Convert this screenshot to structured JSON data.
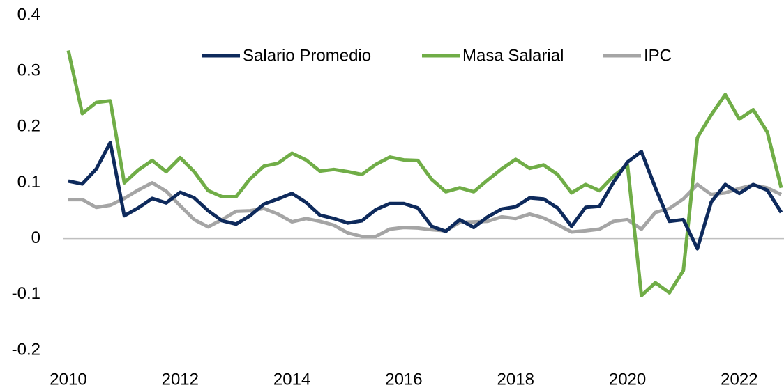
{
  "chart_data": {
    "type": "line",
    "x": [
      2010,
      2010.25,
      2010.5,
      2010.75,
      2011,
      2011.25,
      2011.5,
      2011.75,
      2012,
      2012.25,
      2012.5,
      2012.75,
      2013,
      2013.25,
      2013.5,
      2013.75,
      2014,
      2014.25,
      2014.5,
      2014.75,
      2015,
      2015.25,
      2015.5,
      2015.75,
      2016,
      2016.25,
      2016.5,
      2016.75,
      2017,
      2017.25,
      2017.5,
      2017.75,
      2018,
      2018.25,
      2018.5,
      2018.75,
      2019,
      2019.25,
      2019.5,
      2019.75,
      2020,
      2020.25,
      2020.5,
      2020.75,
      2021,
      2021.25,
      2021.5,
      2021.75,
      2022,
      2022.25,
      2022.5,
      2022.75
    ],
    "series": [
      {
        "name": "Salario Promedio",
        "color": "#0e2a5c",
        "values": [
          0.103,
          0.098,
          0.125,
          0.172,
          0.041,
          0.055,
          0.072,
          0.064,
          0.083,
          0.073,
          0.05,
          0.032,
          0.026,
          0.041,
          0.062,
          0.071,
          0.081,
          0.065,
          0.042,
          0.036,
          0.028,
          0.032,
          0.052,
          0.063,
          0.063,
          0.055,
          0.022,
          0.013,
          0.034,
          0.02,
          0.039,
          0.053,
          0.057,
          0.073,
          0.071,
          0.055,
          0.022,
          0.056,
          0.058,
          0.101,
          0.137,
          0.156,
          0.091,
          0.031,
          0.034,
          -0.018,
          0.066,
          0.097,
          0.081,
          0.097,
          0.087,
          0.047
        ]
      },
      {
        "name": "Masa Salarial",
        "color": "#70ad47",
        "values": [
          0.337,
          0.224,
          0.244,
          0.247,
          0.1,
          0.123,
          0.14,
          0.12,
          0.145,
          0.12,
          0.086,
          0.075,
          0.075,
          0.107,
          0.13,
          0.135,
          0.153,
          0.141,
          0.121,
          0.124,
          0.12,
          0.115,
          0.133,
          0.146,
          0.141,
          0.14,
          0.106,
          0.084,
          0.091,
          0.084,
          0.105,
          0.125,
          0.142,
          0.126,
          0.132,
          0.115,
          0.082,
          0.097,
          0.086,
          0.112,
          0.132,
          -0.102,
          -0.079,
          -0.097,
          -0.057,
          0.181,
          0.222,
          0.258,
          0.214,
          0.231,
          0.191,
          0.091
        ]
      },
      {
        "name": "IPC",
        "color": "#a5a5a5",
        "values": [
          0.07,
          0.07,
          0.056,
          0.06,
          0.072,
          0.087,
          0.1,
          0.085,
          0.059,
          0.034,
          0.021,
          0.034,
          0.049,
          0.05,
          0.054,
          0.044,
          0.03,
          0.036,
          0.031,
          0.024,
          0.01,
          0.004,
          0.004,
          0.017,
          0.02,
          0.019,
          0.016,
          0.014,
          0.029,
          0.03,
          0.031,
          0.039,
          0.036,
          0.044,
          0.037,
          0.025,
          0.012,
          0.014,
          0.017,
          0.031,
          0.034,
          0.017,
          0.047,
          0.054,
          0.071,
          0.097,
          0.079,
          0.082,
          0.09,
          0.096,
          0.091,
          0.079
        ]
      }
    ],
    "xlim": [
      2010,
      2022.75
    ],
    "xticks": [
      2010,
      2012,
      2014,
      2016,
      2018,
      2020,
      2022
    ],
    "ylim": [
      -0.2,
      0.4
    ],
    "yticks": [
      0.4,
      0.3,
      0.2,
      0.1,
      0,
      -0.1,
      -0.2
    ],
    "legend": "top"
  }
}
